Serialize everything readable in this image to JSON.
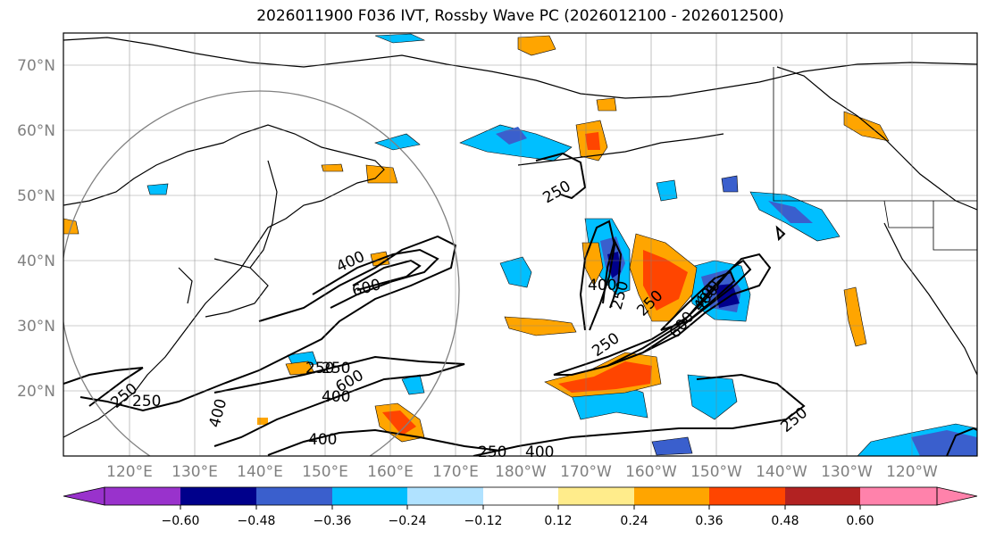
{
  "title": "2026011900 F036 IVT, Rossby Wave PC (2026012100 - 2026012500)",
  "latitude_labels": [
    "70°N",
    "60°N",
    "50°N",
    "40°N",
    "30°N",
    "20°N"
  ],
  "longitude_labels": [
    "120°E",
    "130°E",
    "140°E",
    "150°E",
    "160°E",
    "170°E",
    "180°W",
    "170°W",
    "160°W",
    "150°W",
    "140°W",
    "130°W",
    "120°W"
  ],
  "colorbar": {
    "colors": [
      "#9932CC",
      "#00008B",
      "#3A5FCD",
      "#00BFFF",
      "#B0E2FF",
      "#FFFFFF",
      "#FFEC8B",
      "#FFA500",
      "#FF4500",
      "#B22222",
      "#FF82AB"
    ],
    "tick_labels": [
      "−0.60",
      "−0.48",
      "−0.36",
      "−0.24",
      "−0.12",
      "0.12",
      "0.24",
      "0.36",
      "0.48",
      "0.60"
    ]
  },
  "contour_labels": [
    "250",
    "250",
    "400",
    "250",
    "400",
    "400",
    "600",
    "250",
    "400",
    "600",
    "400",
    "400",
    "250",
    "250",
    "250",
    "400",
    "250",
    "600",
    "400",
    "250",
    "250"
  ]
}
